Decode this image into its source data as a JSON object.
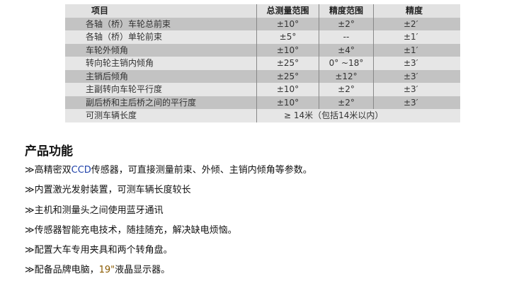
{
  "table": {
    "headers": [
      "项目",
      "总测量范围",
      "精度范围",
      "精度"
    ],
    "rows": [
      [
        "各轴（桥）车轮总前束",
        "±10°",
        "±2°",
        "±2′"
      ],
      [
        "各轴（桥）单轮前束",
        "±5°",
        "--",
        "±1′"
      ],
      [
        "车轮外倾角",
        "±10°",
        "±4°",
        "±1′"
      ],
      [
        "转向轮主销内倾角",
        "±25°",
        "0° ~18°",
        "±3′"
      ],
      [
        "主销后倾角",
        "±25°",
        "±12°",
        "±3′"
      ],
      [
        "主副转向车轮平行度",
        "±10°",
        "±2°",
        "±3′"
      ],
      [
        "副后桥和主后桥之间的平行度",
        "±10°",
        "±2°",
        "±3′"
      ]
    ],
    "last_row": {
      "label": "可测车辆长度",
      "value": "≥ 14米（包括14米以内）"
    }
  },
  "features": {
    "title": "产品功能",
    "bullet": "≫",
    "items": [
      {
        "pre": "高精密双",
        "hl": "CCD",
        "post": "传感器，可直接测量前束、外倾、主销内倾角等参数。"
      },
      {
        "pre": "内置激光发射装置，可测车辆长度较长",
        "hl": "",
        "post": ""
      },
      {
        "pre": "主机和测量头之间使用蓝牙通讯",
        "hl": "",
        "post": ""
      },
      {
        "pre": "传感器智能充电技术，随挂随充，解决缺电烦恼。",
        "hl": "",
        "post": ""
      },
      {
        "pre": "配置大车专用夹具和两个转角盘。",
        "hl": "",
        "post": ""
      },
      {
        "pre": "配备品牌电脑，",
        "hl2": "19\"",
        "post": "液晶显示器。"
      }
    ]
  }
}
